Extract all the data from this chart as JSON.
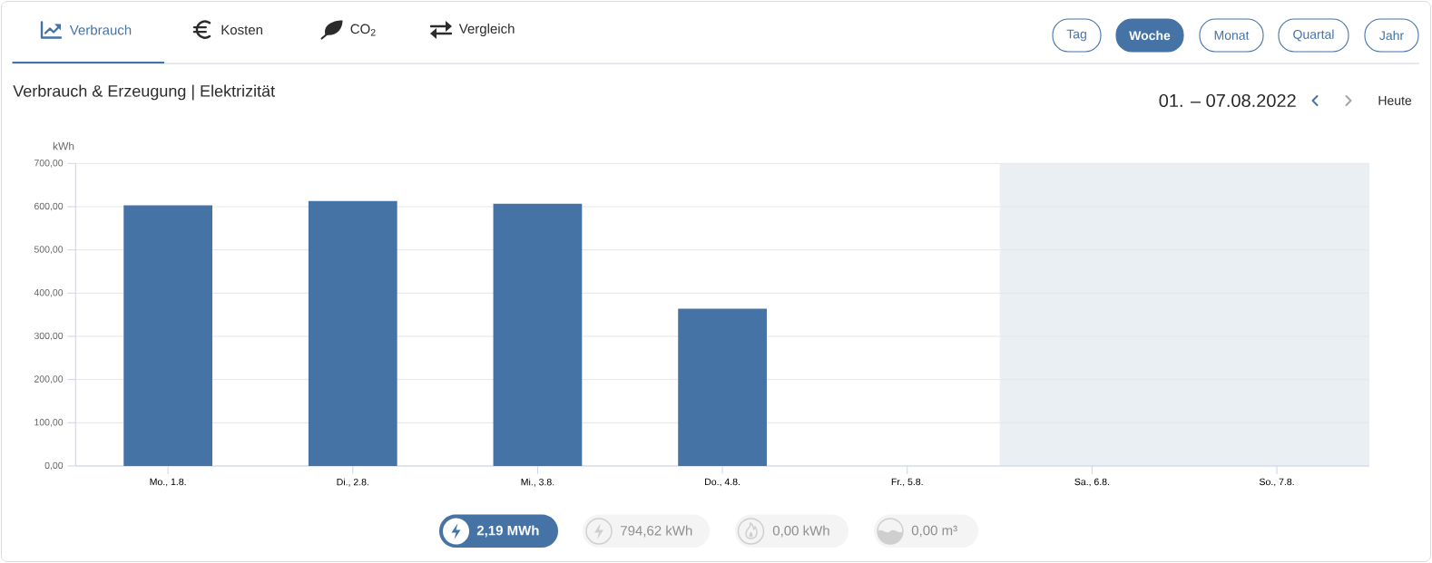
{
  "chart_data": {
    "type": "bar",
    "title": "Verbrauch & Erzeugung | Elektrizität",
    "subtitle": "01. – 07.08.2022",
    "ylabel": "kWh",
    "categories": [
      "Mo., 1.8.",
      "Di., 2.8.",
      "Mi., 3.8.",
      "Do., 4.8.",
      "Fr., 5.8.",
      "Sa., 6.8.",
      "So., 7.8."
    ],
    "values": [
      603,
      613,
      607,
      364,
      null,
      null,
      null
    ],
    "color": "#4573a5",
    "ylim": [
      0,
      700
    ],
    "yticks": [
      {
        "value": 0,
        "label": "0,00"
      },
      {
        "value": 100,
        "label": "100,00"
      },
      {
        "value": 200,
        "label": "200,00"
      },
      {
        "value": 300,
        "label": "300,00"
      },
      {
        "value": 400,
        "label": "400,00"
      },
      {
        "value": 500,
        "label": "500,00"
      },
      {
        "value": 600,
        "label": "600,00"
      },
      {
        "value": 700,
        "label": "700,00"
      }
    ],
    "grid": "y",
    "bands": [
      {
        "axis": "x",
        "from": "Sa., 6.8.",
        "to": "So., 7.8.",
        "color": "#eaeff4"
      }
    ],
    "annotations": [
      "Verbrauch",
      "Kosten",
      "CO$_{2}$",
      "Vergleich",
      "Tag",
      "Woche",
      "Monat",
      "Quartal",
      "Jahr",
      "Heute",
      "2,19 MWh",
      "794,62 kWh",
      "0,00 kWh",
      "0,00 m³"
    ]
  }
}
